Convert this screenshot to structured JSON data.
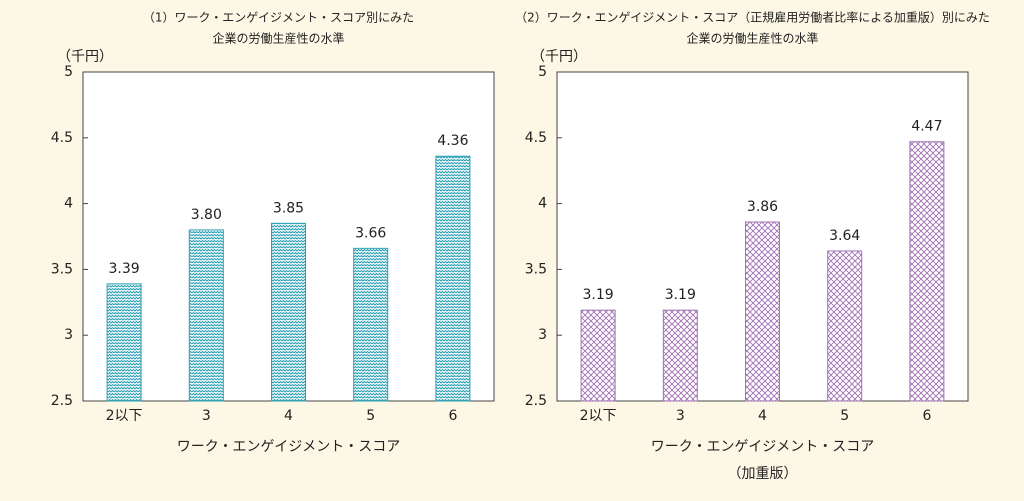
{
  "chart_data": [
    {
      "type": "bar",
      "title": [
        "（1）ワーク・エンゲイジメント・スコア別にみた",
        "企業の労働生産性の水準"
      ],
      "y_unit": "（千円）",
      "x_label": [
        "ワーク・エンゲイジメント・スコア"
      ],
      "categories": [
        "2以下",
        "3",
        "4",
        "5",
        "6"
      ],
      "values": [
        3.39,
        3.8,
        3.85,
        3.66,
        4.36
      ],
      "value_labels": [
        "3.39",
        "3.80",
        "3.85",
        "3.66",
        "4.36"
      ],
      "color": "#2a9fb4",
      "pattern": "wave",
      "ylim": [
        2.5,
        5
      ],
      "yticks": [
        2.5,
        3,
        3.5,
        4,
        4.5,
        5
      ]
    },
    {
      "type": "bar",
      "title": [
        "（2）ワーク・エンゲイジメント・スコア（正規雇用労働者比率による加重版）別にみた",
        "企業の労働生産性の水準"
      ],
      "y_unit": "（千円）",
      "x_label": [
        "ワーク・エンゲイジメント・スコア",
        "（加重版）"
      ],
      "categories": [
        "2以下",
        "3",
        "4",
        "5",
        "6"
      ],
      "values": [
        3.19,
        3.19,
        3.86,
        3.64,
        4.47
      ],
      "value_labels": [
        "3.19",
        "3.19",
        "3.86",
        "3.64",
        "4.47"
      ],
      "color": "#a070b4",
      "pattern": "crosshatch",
      "ylim": [
        2.5,
        5
      ],
      "yticks": [
        2.5,
        3,
        3.5,
        4,
        4.5,
        5
      ]
    }
  ]
}
